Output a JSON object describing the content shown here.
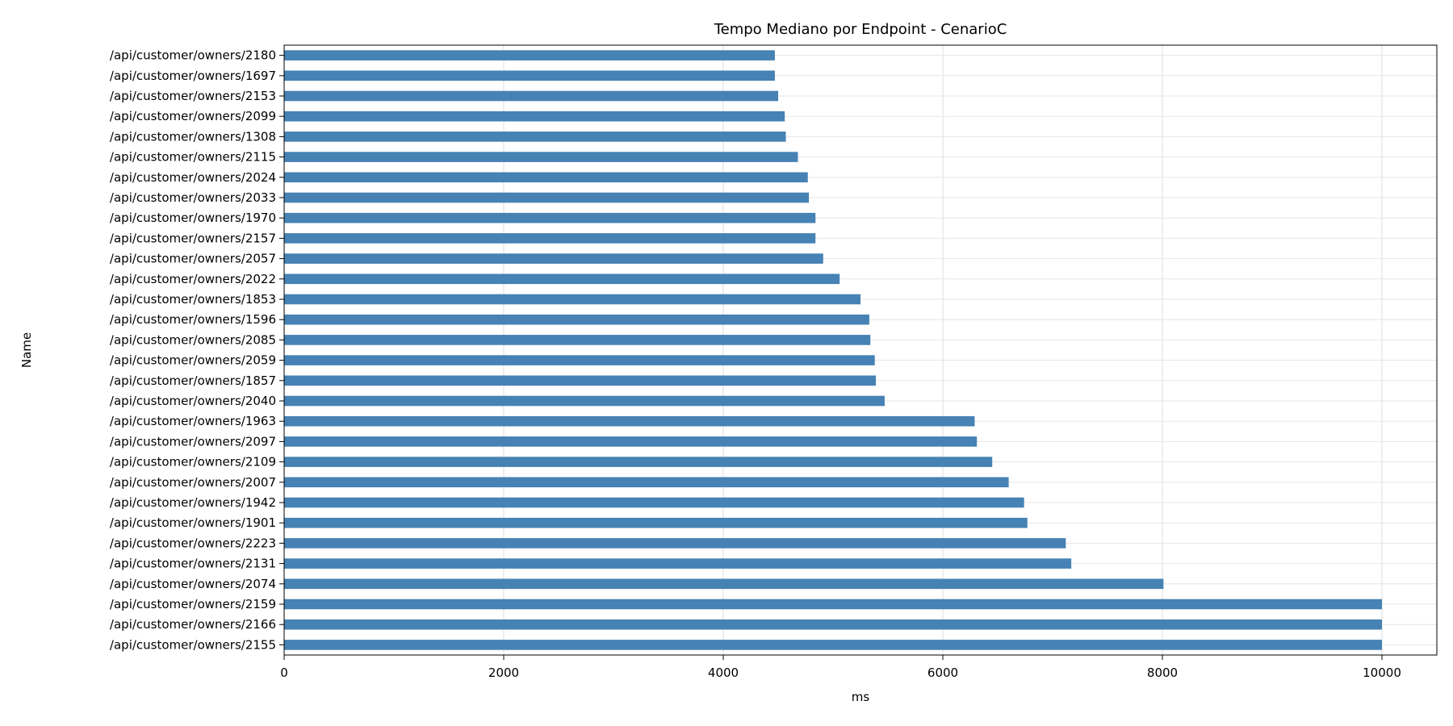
{
  "chart_data": {
    "type": "bar",
    "orientation": "horizontal",
    "title": "Tempo Mediano por Endpoint - CenarioC",
    "xlabel": "ms",
    "ylabel": "Name",
    "xlim": [
      0,
      10500
    ],
    "xticks": [
      0,
      2000,
      4000,
      6000,
      8000,
      10000
    ],
    "grid": true,
    "bar_color": "#4682b4",
    "categories": [
      "/api/customer/owners/2180",
      "/api/customer/owners/1697",
      "/api/customer/owners/2153",
      "/api/customer/owners/2099",
      "/api/customer/owners/1308",
      "/api/customer/owners/2115",
      "/api/customer/owners/2024",
      "/api/customer/owners/2033",
      "/api/customer/owners/1970",
      "/api/customer/owners/2157",
      "/api/customer/owners/2057",
      "/api/customer/owners/2022",
      "/api/customer/owners/1853",
      "/api/customer/owners/1596",
      "/api/customer/owners/2085",
      "/api/customer/owners/2059",
      "/api/customer/owners/1857",
      "/api/customer/owners/2040",
      "/api/customer/owners/1963",
      "/api/customer/owners/2097",
      "/api/customer/owners/2109",
      "/api/customer/owners/2007",
      "/api/customer/owners/1942",
      "/api/customer/owners/1901",
      "/api/customer/owners/2223",
      "/api/customer/owners/2131",
      "/api/customer/owners/2074",
      "/api/customer/owners/2159",
      "/api/customer/owners/2166",
      "/api/customer/owners/2155"
    ],
    "values": [
      4470,
      4470,
      4500,
      4560,
      4570,
      4680,
      4770,
      4780,
      4840,
      4840,
      4910,
      5060,
      5250,
      5330,
      5340,
      5380,
      5390,
      5470,
      6290,
      6310,
      6450,
      6600,
      6740,
      6770,
      7120,
      7170,
      8010,
      10000,
      10000,
      10000
    ]
  }
}
